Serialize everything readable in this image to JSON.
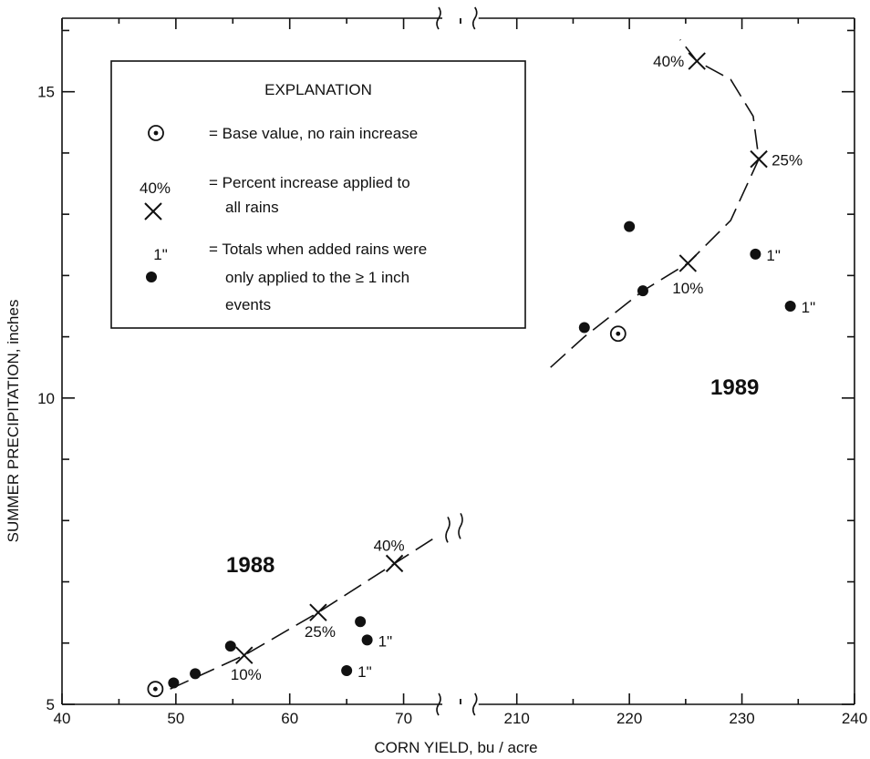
{
  "chart_data": {
    "type": "scatter",
    "xlabel": "CORN YIELD, bu / acre",
    "ylabel": "SUMMER PRECIPITATION, inches",
    "ylim": [
      5,
      16.2
    ],
    "y_ticks": [
      5,
      10,
      15
    ],
    "x_axis_break": true,
    "x_segments": [
      {
        "range": [
          40,
          75
        ],
        "ticks": [
          40,
          50,
          60,
          70
        ]
      },
      {
        "range": [
          205,
          240
        ],
        "ticks": [
          210,
          220,
          230,
          240
        ]
      }
    ],
    "grid": false,
    "legend": {
      "title": "EXPLANATION",
      "placement": "top-left",
      "entries": [
        {
          "symbol": "circle-dot",
          "marker_label": "",
          "lines": [
            "= Base value, no rain increase"
          ]
        },
        {
          "symbol": "x",
          "marker_label": "40%",
          "lines": [
            "= Percent increase applied to",
            "all rains"
          ]
        },
        {
          "symbol": "dot",
          "marker_label": "1\"",
          "lines": [
            "= Totals when added rains were",
            "only applied to the ≥ 1 inch",
            "events"
          ]
        }
      ]
    },
    "groups": [
      {
        "label": "1988",
        "base": {
          "x": 48.2,
          "y": 5.25
        },
        "percent_points": [
          {
            "x": 56.0,
            "y": 5.8,
            "label": "10%"
          },
          {
            "x": 62.5,
            "y": 6.5,
            "label": "25%"
          },
          {
            "x": 69.2,
            "y": 7.3,
            "label": "40%"
          }
        ],
        "dots": [
          {
            "x": 49.8,
            "y": 5.35,
            "label": ""
          },
          {
            "x": 51.7,
            "y": 5.5,
            "label": ""
          },
          {
            "x": 54.8,
            "y": 5.95,
            "label": ""
          },
          {
            "x": 65.0,
            "y": 5.55,
            "label": "1\""
          },
          {
            "x": 66.2,
            "y": 6.35,
            "label": ""
          },
          {
            "x": 66.8,
            "y": 6.05,
            "label": "1\""
          }
        ],
        "curve": [
          [
            49.5,
            5.25
          ],
          [
            56.0,
            5.8
          ],
          [
            62.5,
            6.5
          ],
          [
            69.2,
            7.3
          ],
          [
            73.0,
            7.75
          ]
        ]
      },
      {
        "label": "1989",
        "base": {
          "x": 219.0,
          "y": 11.05
        },
        "percent_points": [
          {
            "x": 225.2,
            "y": 12.2,
            "label": "10%"
          },
          {
            "x": 231.5,
            "y": 13.9,
            "label": "25%"
          },
          {
            "x": 226.0,
            "y": 15.5,
            "label": "40%"
          }
        ],
        "dots": [
          {
            "x": 216.0,
            "y": 11.15,
            "label": ""
          },
          {
            "x": 221.2,
            "y": 11.75,
            "label": ""
          },
          {
            "x": 220.0,
            "y": 12.8,
            "label": ""
          },
          {
            "x": 231.2,
            "y": 12.35,
            "label": "1\""
          },
          {
            "x": 234.3,
            "y": 11.5,
            "label": "1\""
          }
        ],
        "curve": [
          [
            213.0,
            10.5
          ],
          [
            216.0,
            11.0
          ],
          [
            221.2,
            11.75
          ],
          [
            225.2,
            12.2
          ],
          [
            229.0,
            12.9
          ],
          [
            231.5,
            13.9
          ],
          [
            231.0,
            14.6
          ],
          [
            229.0,
            15.2
          ],
          [
            226.0,
            15.5
          ],
          [
            224.5,
            15.85
          ]
        ]
      }
    ]
  }
}
